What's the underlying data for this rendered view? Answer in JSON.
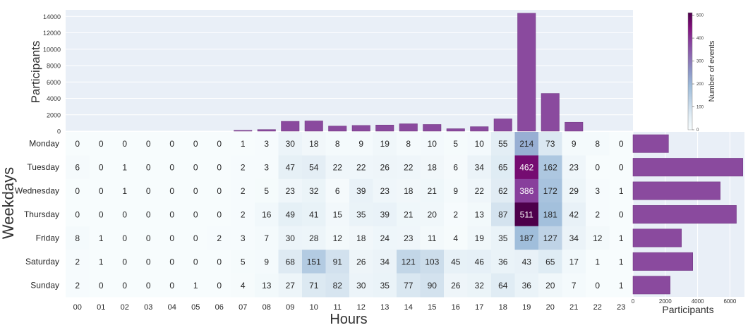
{
  "chart_data": [
    {
      "type": "bar",
      "ylabel": "Participants",
      "ylim": [
        0,
        14800
      ],
      "yticks": [
        "0",
        "2000",
        "4000",
        "6000",
        "8000",
        "10000",
        "12000",
        "14000"
      ],
      "ytick_values": [
        0,
        2000,
        4000,
        6000,
        8000,
        10000,
        12000,
        14000
      ],
      "grid": true,
      "categories": [
        "00",
        "01",
        "02",
        "03",
        "04",
        "05",
        "06",
        "07",
        "08",
        "09",
        "10",
        "11",
        "12",
        "13",
        "14",
        "15",
        "16",
        "17",
        "18",
        "19",
        "20",
        "21",
        "22",
        "23"
      ],
      "values": [
        0,
        0,
        0,
        0,
        0,
        0,
        0,
        100,
        200,
        1200,
        1250,
        620,
        700,
        750,
        900,
        820,
        300,
        550,
        1500,
        14400,
        4600,
        1100,
        0,
        0
      ],
      "bar_color": "#8a4a9e"
    },
    {
      "type": "heatmap",
      "xlabel": "Hours",
      "ylabel": "Weekdays",
      "x": [
        "00",
        "01",
        "02",
        "03",
        "04",
        "05",
        "06",
        "07",
        "08",
        "09",
        "10",
        "11",
        "12",
        "13",
        "14",
        "15",
        "16",
        "17",
        "18",
        "19",
        "20",
        "21",
        "22",
        "23"
      ],
      "y": [
        "Monday",
        "Tuesday",
        "Wednesday",
        "Thursday",
        "Friday",
        "Saturday",
        "Sunday"
      ],
      "values": [
        [
          0,
          0,
          0,
          0,
          0,
          0,
          0,
          1,
          3,
          30,
          18,
          8,
          9,
          19,
          8,
          10,
          5,
          10,
          55,
          214,
          73,
          9,
          8,
          0
        ],
        [
          6,
          0,
          1,
          0,
          0,
          0,
          0,
          2,
          3,
          47,
          54,
          22,
          22,
          26,
          22,
          18,
          6,
          34,
          65,
          462,
          162,
          23,
          0,
          0
        ],
        [
          0,
          0,
          1,
          0,
          0,
          0,
          0,
          2,
          5,
          23,
          32,
          6,
          39,
          23,
          18,
          21,
          9,
          22,
          62,
          386,
          172,
          29,
          3,
          1
        ],
        [
          0,
          0,
          0,
          0,
          0,
          0,
          0,
          2,
          16,
          49,
          41,
          15,
          35,
          39,
          21,
          20,
          2,
          13,
          87,
          511,
          181,
          42,
          2,
          0
        ],
        [
          8,
          1,
          0,
          0,
          0,
          0,
          2,
          3,
          7,
          30,
          28,
          12,
          18,
          24,
          23,
          11,
          4,
          19,
          35,
          187,
          127,
          34,
          12,
          1
        ],
        [
          2,
          1,
          0,
          0,
          0,
          0,
          0,
          5,
          9,
          68,
          151,
          91,
          26,
          34,
          121,
          103,
          45,
          46,
          36,
          43,
          65,
          17,
          1,
          1
        ],
        [
          2,
          0,
          0,
          0,
          0,
          1,
          0,
          4,
          13,
          27,
          71,
          82,
          30,
          35,
          77,
          90,
          26,
          32,
          64,
          36,
          20,
          7,
          0,
          1
        ]
      ],
      "cmap": "BuPu",
      "vmin": 0,
      "vmax": 511,
      "colorbar_label": "Number of events",
      "colorbar_ticks": [
        "0",
        "100",
        "200",
        "300",
        "400",
        "500"
      ],
      "colorbar_tick_values": [
        0,
        100,
        200,
        300,
        400,
        500
      ]
    },
    {
      "type": "bar",
      "orientation": "horizontal",
      "xlabel": "Participants",
      "xlim": [
        0,
        6900
      ],
      "xticks": [
        "0",
        "2000",
        "4000",
        "6000"
      ],
      "xtick_values": [
        0,
        2000,
        4000,
        6000
      ],
      "categories": [
        "Monday",
        "Tuesday",
        "Wednesday",
        "Thursday",
        "Friday",
        "Saturday",
        "Sunday"
      ],
      "values": [
        2200,
        6800,
        5400,
        6400,
        3000,
        3700,
        2300
      ],
      "bar_color": "#8a4a9e"
    }
  ]
}
